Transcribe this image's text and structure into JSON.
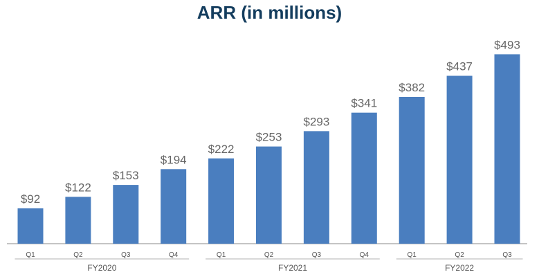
{
  "colors": {
    "bar": "#4a7ebf",
    "title": "#143d5e",
    "value_label": "#666666",
    "axis_text": "#555555",
    "axis_line": "#b0b0b0"
  },
  "chart_data": {
    "type": "bar",
    "title": "ARR (in millions)",
    "xlabel": "",
    "ylabel": "",
    "grid": false,
    "legend": "none",
    "ylim": [
      0,
      500
    ],
    "categories": [
      "Q1",
      "Q2",
      "Q3",
      "Q4",
      "Q1",
      "Q2",
      "Q3",
      "Q4",
      "Q1",
      "Q2",
      "Q3"
    ],
    "values": [
      92,
      122,
      153,
      194,
      222,
      253,
      293,
      341,
      382,
      437,
      493
    ],
    "value_labels": [
      "$92",
      "$122",
      "$153",
      "$194",
      "$222",
      "$253",
      "$293",
      "$341",
      "$382",
      "$437",
      "$493"
    ],
    "groups": [
      {
        "label": "FY2020",
        "start": 0,
        "end": 3
      },
      {
        "label": "FY2021",
        "start": 4,
        "end": 7
      },
      {
        "label": "FY2022",
        "start": 8,
        "end": 10
      }
    ]
  }
}
